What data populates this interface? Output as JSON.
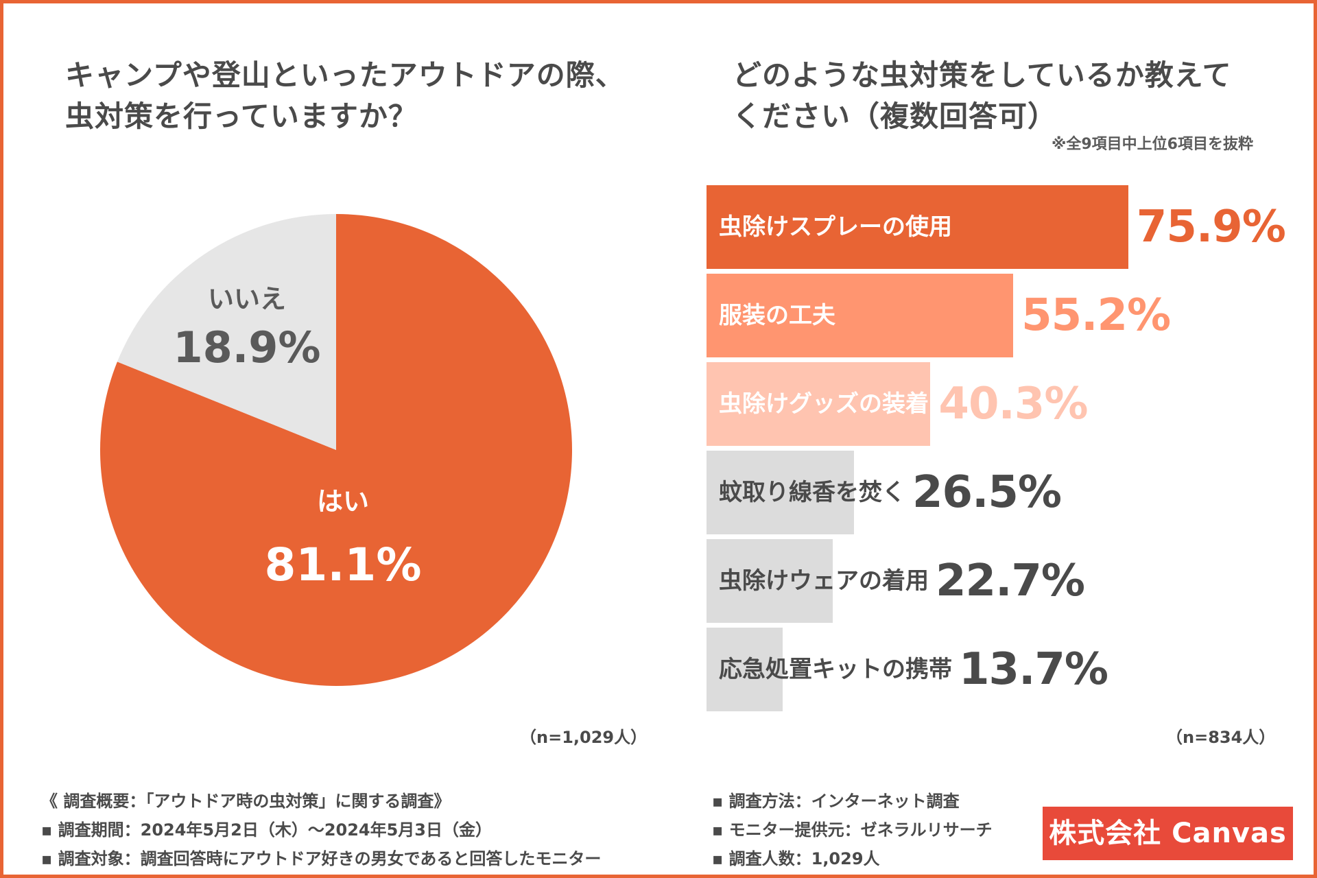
{
  "left_panel": {
    "question_line1": "キャンプや登山といったアウトドアの際、",
    "question_line2": "虫対策を行っていますか？",
    "sample_size": "（n=1,029人）"
  },
  "right_panel": {
    "question_line1": "どのような虫対策をしているか教えて",
    "question_line2": "ください（複数回答可）",
    "note": "※全9項目中上位6項目を抜粋",
    "sample_size": "（n=834人）"
  },
  "footer": {
    "summary": "《 調査概要：「アウトドア時の虫対策」に関する調査》",
    "period": "▪ 調査期間：2024年5月2日（木）～2024年5月3日（金）",
    "target": "▪ 調査対象：調査回答時にアウトドア好きの男女であると回答したモニター",
    "method": "▪ 調査方法：インターネット調査",
    "provider": "▪ モニター提供元：ゼネラルリサーチ",
    "count": "▪ 調査人数：1,029人"
  },
  "brand": {
    "name": "株式会社 Canvas",
    "color": "#e84a3a"
  },
  "chart_data": [
    {
      "type": "pie",
      "title": "キャンプや登山といったアウトドアの際、虫対策を行っていますか？",
      "slices": [
        {
          "label": "はい",
          "value": 81.1,
          "value_label": "81.1%",
          "color": "#e86434"
        },
        {
          "label": "いいえ",
          "value": 18.9,
          "value_label": "18.9%",
          "color": "#e6e6e6"
        }
      ],
      "n": "n=1,029人"
    },
    {
      "type": "bar",
      "orientation": "horizontal",
      "title": "どのような虫対策をしているか教えてください（複数回答可）",
      "categories": [
        "虫除けスプレーの使用",
        "服装の工夫",
        "虫除けグッズの装着",
        "蚊取り線香を焚く",
        "虫除けウェアの着用",
        "応急処置キットの携帯"
      ],
      "values": [
        75.9,
        55.2,
        40.3,
        26.5,
        22.7,
        13.7
      ],
      "value_labels": [
        "75.9%",
        "55.2%",
        "40.3%",
        "26.5%",
        "22.7%",
        "13.7%"
      ],
      "bar_colors": [
        "#e86434",
        "#ff9570",
        "#ffc4b0",
        "#dcdcdc",
        "#dcdcdc",
        "#dcdcdc"
      ],
      "label_colors": [
        "#ffffff",
        "#ffffff",
        "#ffffff",
        "#4a4a4a",
        "#4a4a4a",
        "#4a4a4a"
      ],
      "value_colors": [
        "#e86434",
        "#ff9570",
        "#ffc4b0",
        "#4a4a4a",
        "#4a4a4a",
        "#4a4a4a"
      ],
      "xlim": [
        0,
        100
      ],
      "n": "n=834人"
    }
  ]
}
